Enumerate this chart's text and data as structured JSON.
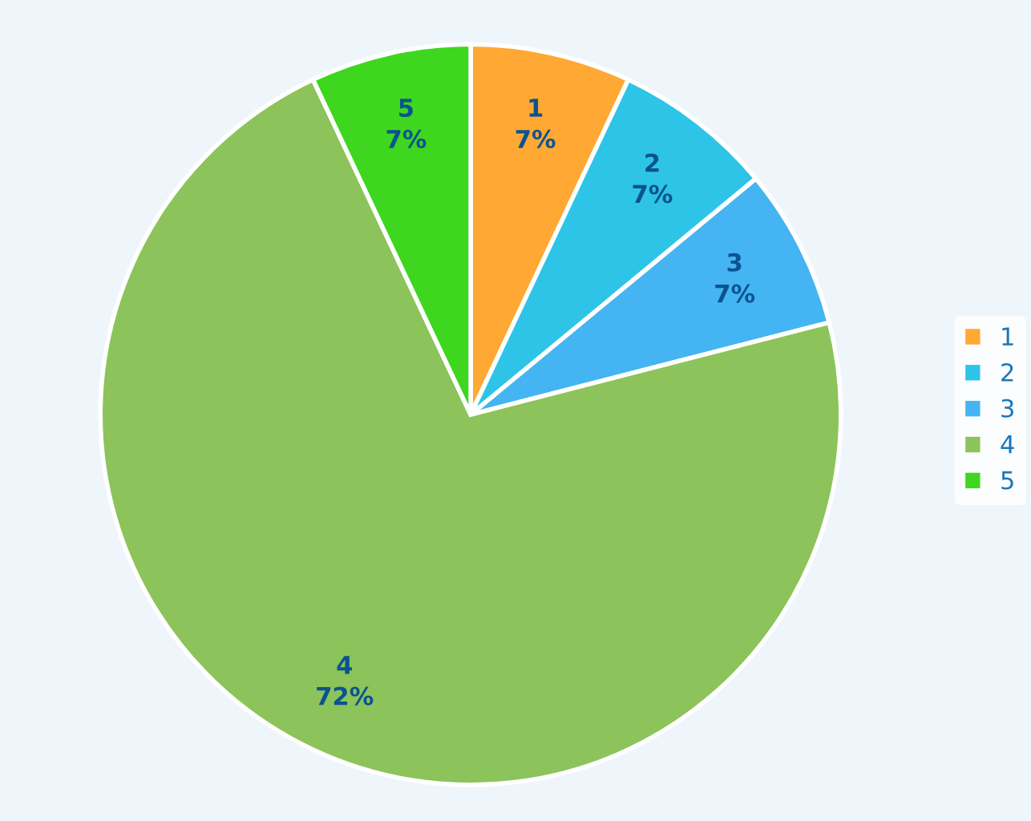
{
  "chart_data": {
    "type": "pie",
    "categories": [
      "1",
      "2",
      "3",
      "4",
      "5"
    ],
    "values": [
      7,
      7,
      7,
      72,
      7
    ],
    "colors": [
      "#ffa833",
      "#2ec4e8",
      "#45b4f2",
      "#8cc35a",
      "#3ed61e"
    ],
    "value_labels": [
      "7%",
      "7%",
      "7%",
      "72%",
      "7%"
    ],
    "legend": "right"
  }
}
